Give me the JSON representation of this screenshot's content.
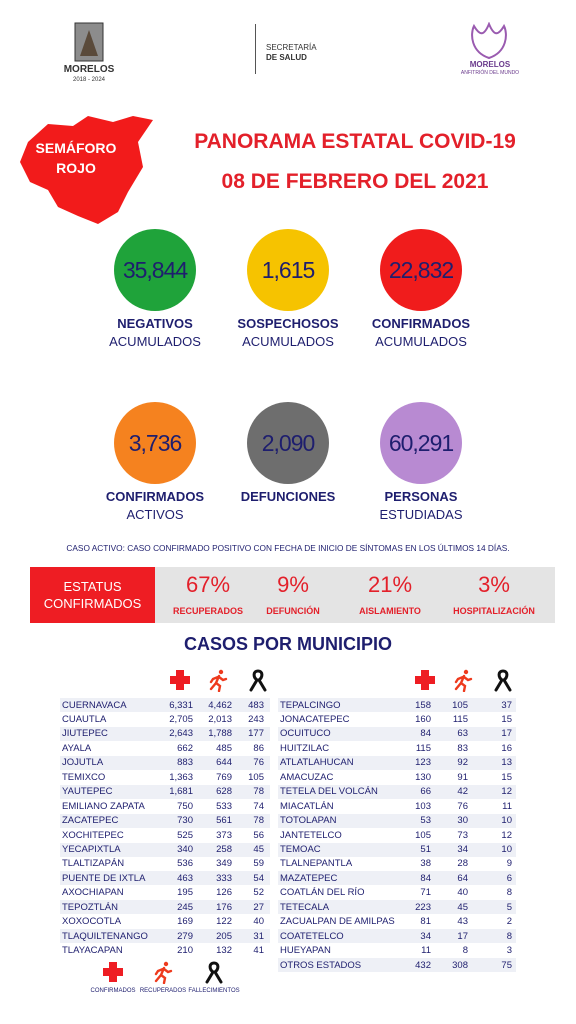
{
  "header": {
    "left_logo": {
      "name": "MORELOS",
      "period": "2018 - 2024"
    },
    "center": {
      "line1": "SECRETARÍA",
      "line2": "DE SALUD"
    },
    "right_logo": {
      "name": "MORELOS",
      "tagline": "ANFITRIÓN DEL MUNDO"
    }
  },
  "semaforo": {
    "line1": "SEMÁFORO",
    "line2": "ROJO"
  },
  "title": "PANORAMA ESTATAL COVID-19",
  "date": "08 DE FEBRERO DEL 2021",
  "stats": [
    {
      "value": "35,844",
      "label1": "NEGATIVOS",
      "label2": "ACUMULADOS",
      "color": "#1fa33a"
    },
    {
      "value": "1,615",
      "label1": "SOSPECHOSOS",
      "label2": "ACUMULADOS",
      "color": "#f6c300"
    },
    {
      "value": "22,832",
      "label1": "CONFIRMADOS",
      "label2": "ACUMULADOS",
      "color": "#f01c1c"
    },
    {
      "value": "3,736",
      "label1": "CONFIRMADOS",
      "label2": "ACTIVOS",
      "color": "#f5821f"
    },
    {
      "value": "2,090",
      "label1": "DEFUNCIONES",
      "label2": null,
      "color": "#6e6e6e"
    },
    {
      "value": "60,291",
      "label1": "PERSONAS",
      "label2": "ESTUDIADAS",
      "color": "#b88ad2"
    }
  ],
  "note": "CASO ACTIVO: CASO CONFIRMADO POSITIVO CON FECHA DE INICIO DE SÍNTOMAS EN LOS ÚLTIMOS 14 DÍAS.",
  "status": {
    "label1": "ESTATUS",
    "label2": "CONFIRMADOS",
    "items": [
      {
        "value": "67%",
        "label": "RECUPERADOS"
      },
      {
        "value": "9%",
        "label": "DEFUNCIÓN"
      },
      {
        "value": "21%",
        "label": "AISLAMIENTO"
      },
      {
        "value": "3%",
        "label": "HOSPITALIZACIÓN"
      }
    ]
  },
  "municipios_title": "CASOS POR MUNICIPIO",
  "table_left": [
    [
      "CUERNAVACA",
      "6,331",
      "4,462",
      "483"
    ],
    [
      "CUAUTLA",
      "2,705",
      "2,013",
      "243"
    ],
    [
      "JIUTEPEC",
      "2,643",
      "1,788",
      "177"
    ],
    [
      "AYALA",
      "662",
      "485",
      "86"
    ],
    [
      "JOJUTLA",
      "883",
      "644",
      "76"
    ],
    [
      "TEMIXCO",
      "1,363",
      "769",
      "105"
    ],
    [
      "YAUTEPEC",
      "1,681",
      "628",
      "78"
    ],
    [
      "EMILIANO ZAPATA",
      "750",
      "533",
      "74"
    ],
    [
      "ZACATEPEC",
      "730",
      "561",
      "78"
    ],
    [
      "XOCHITEPEC",
      "525",
      "373",
      "56"
    ],
    [
      "YECAPIXTLA",
      "340",
      "258",
      "45"
    ],
    [
      "TLALTIZAPÁN",
      "536",
      "349",
      "59"
    ],
    [
      "PUENTE DE IXTLA",
      "463",
      "333",
      "54"
    ],
    [
      "AXOCHIAPAN",
      "195",
      "126",
      "52"
    ],
    [
      "TEPOZTLÁN",
      "245",
      "176",
      "27"
    ],
    [
      "XOXOCOTLA",
      "169",
      "122",
      "40"
    ],
    [
      "TLAQUILTENANGO",
      "279",
      "205",
      "31"
    ],
    [
      "TLAYACAPAN",
      "210",
      "132",
      "41"
    ]
  ],
  "table_right": [
    [
      "TEPALCINGO",
      "158",
      "105",
      "37"
    ],
    [
      "JONACATEPEC",
      "160",
      "115",
      "15"
    ],
    [
      "OCUITUCO",
      "84",
      "63",
      "17"
    ],
    [
      "HUITZILAC",
      "115",
      "83",
      "16"
    ],
    [
      "ATLATLAHUCAN",
      "123",
      "92",
      "13"
    ],
    [
      "AMACUZAC",
      "130",
      "91",
      "15"
    ],
    [
      "TETELA DEL VOLCÁN",
      "66",
      "42",
      "12"
    ],
    [
      "MIACATLÁN",
      "103",
      "76",
      "11"
    ],
    [
      "TOTOLAPAN",
      "53",
      "30",
      "10"
    ],
    [
      "JANTETELCO",
      "105",
      "73",
      "12"
    ],
    [
      "TEMOAC",
      "51",
      "34",
      "10"
    ],
    [
      "TLALNEPANTLA",
      "38",
      "28",
      "9"
    ],
    [
      "MAZATEPEC",
      "84",
      "64",
      "6"
    ],
    [
      "COATLÁN DEL RÍO",
      "71",
      "40",
      "8"
    ],
    [
      "TETECALA",
      "223",
      "45",
      "5"
    ],
    [
      "ZACUALPAN DE AMILPAS",
      "81",
      "43",
      "2"
    ],
    [
      "COATETELCO",
      "34",
      "17",
      "8"
    ],
    [
      "HUEYAPAN",
      "11",
      "8",
      "3"
    ],
    [
      "OTROS ESTADOS",
      "432",
      "308",
      "75"
    ]
  ],
  "legend": [
    "CONFIRMADOS",
    "RECUPERADOS",
    "FALLECIMIENTOS"
  ]
}
